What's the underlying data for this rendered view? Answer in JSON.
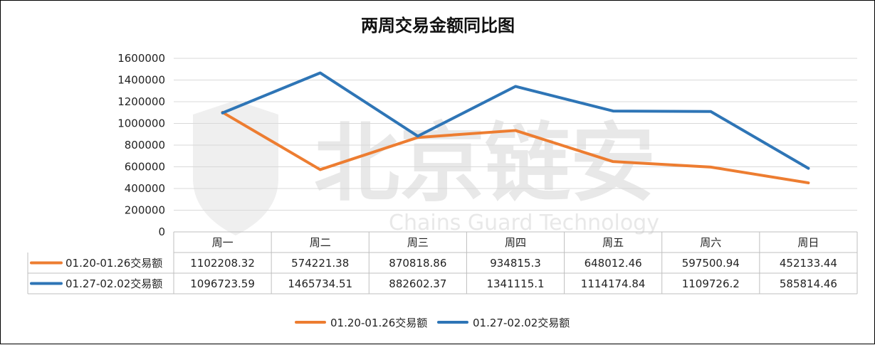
{
  "chart_data": {
    "type": "line",
    "title": "两周交易金额同比图",
    "categories": [
      "周一",
      "周二",
      "周三",
      "周四",
      "周五",
      "周六",
      "周日"
    ],
    "series": [
      {
        "name": "01.20-01.26交易额",
        "color": "#ed7d31",
        "values": [
          1102208.32,
          574221.38,
          870818.86,
          934815.3,
          648012.46,
          597500.94,
          452133.44
        ],
        "labels": [
          "1102208.32",
          "574221.38",
          "870818.86",
          "934815.3",
          "648012.46",
          "597500.94",
          "452133.44"
        ]
      },
      {
        "name": "01.27-02.02交易额",
        "color": "#2e75b6",
        "values": [
          1096723.59,
          1465734.51,
          882602.37,
          1341115.1,
          1114174.84,
          1109726.2,
          585814.46
        ],
        "labels": [
          "1096723.59",
          "1465734.51",
          "882602.37",
          "1341115.1",
          "1114174.84",
          "1109726.2",
          "585814.46"
        ]
      }
    ],
    "ylim": [
      0,
      1600000
    ],
    "yticks": [
      "0",
      "200000",
      "400000",
      "600000",
      "800000",
      "1000000",
      "1200000",
      "1400000",
      "1600000"
    ],
    "grid": true,
    "data_table": true,
    "legend_position": "bottom",
    "watermark": {
      "text": "北京链安",
      "subtext": "Chains Guard Technology"
    }
  }
}
